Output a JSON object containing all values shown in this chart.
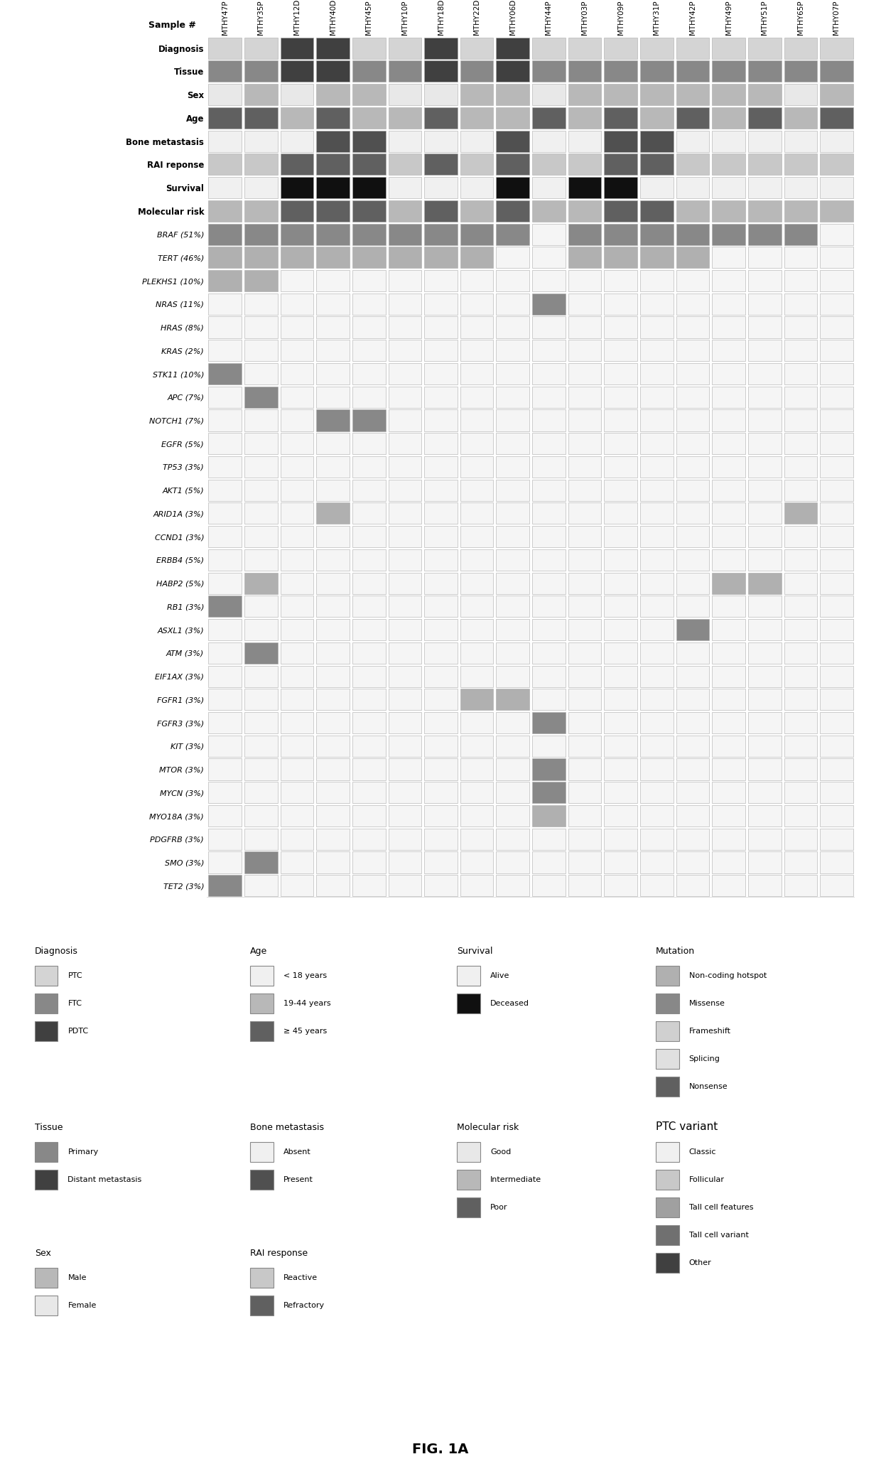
{
  "samples": [
    "MTHY47P",
    "MTHY35P",
    "MTHY12D",
    "MTHY40D",
    "MTHY45P",
    "MTHY10P",
    "MTHY18D",
    "MTHY22D",
    "MTHY06D",
    "MTHY44P",
    "MTHY03P",
    "MTHY09P",
    "MTHY31P",
    "MTHY42P",
    "MTHY49P",
    "MTHY51P",
    "MTHY65P",
    "MTHY07P"
  ],
  "clinical_rows": [
    "Diagnosis",
    "Tissue",
    "Sex",
    "Age",
    "Bone metastasis",
    "RAI reponse",
    "Survival",
    "Molecular risk"
  ],
  "gene_rows": [
    "BRAF (51%)",
    "TERT (46%)",
    "PLEKHS1 (10%)",
    "NRAS (11%)",
    "HRAS (8%)",
    "KRAS (2%)",
    "STK11 (10%)",
    "APC (7%)",
    "NOTCH1 (7%)",
    "EGFR (5%)",
    "TP53 (3%)",
    "AKT1 (5%)",
    "ARID1A (3%)",
    "CCND1 (3%)",
    "ERBB4 (5%)",
    "HABP2 (5%)",
    "RB1 (3%)",
    "ASXL1 (3%)",
    "ATM (3%)",
    "EIF1AX (3%)",
    "FGFR1 (3%)",
    "FGFR3 (3%)",
    "KIT (3%)",
    "MTOR (3%)",
    "MYCN (3%)",
    "MYO18A (3%)",
    "PDGFRB (3%)",
    "SMO (3%)",
    "TET2 (3%)"
  ],
  "n_samples": 18,
  "n_clinical": 8,
  "n_genes": 29,
  "clinical_data": {
    "Diagnosis": [
      "PTC",
      "PTC",
      "PDTC",
      "PDTC",
      "PTC",
      "PTC",
      "PDTC",
      "PTC",
      "PDTC",
      "PTC",
      "PTC",
      "PTC",
      "PTC",
      "PTC",
      "PTC",
      "PTC",
      "PTC",
      "PTC"
    ],
    "Tissue": [
      "Primary",
      "Primary",
      "Distant metastasis",
      "Distant metastasis",
      "Primary",
      "Primary",
      "Distant metastasis",
      "Primary",
      "Distant metastasis",
      "Primary",
      "Primary",
      "Primary",
      "Primary",
      "Primary",
      "Primary",
      "Primary",
      "Primary",
      "Primary"
    ],
    "Sex": [
      "Female",
      "Male",
      "Female",
      "Male",
      "Male",
      "Female",
      "Female",
      "Male",
      "Male",
      "Female",
      "Male",
      "Male",
      "Male",
      "Male",
      "Male",
      "Male",
      "Female",
      "Male"
    ],
    "Age": [
      ">=45",
      ">=45",
      "19-44",
      ">=45",
      "19-44",
      "19-44",
      ">=45",
      "19-44",
      "19-44",
      ">=45",
      "19-44",
      ">=45",
      "19-44",
      ">=45",
      "19-44",
      ">=45",
      "19-44",
      ">=45"
    ],
    "Bone metastasis": [
      "Absent",
      "Absent",
      "Absent",
      "Present",
      "Present",
      "Absent",
      "Absent",
      "Absent",
      "Present",
      "Absent",
      "Absent",
      "Present",
      "Present",
      "Absent",
      "Absent",
      "Absent",
      "Absent",
      "Absent"
    ],
    "RAI reponse": [
      "Reactive",
      "Reactive",
      "Refractory",
      "Refractory",
      "Refractory",
      "Reactive",
      "Refractory",
      "Reactive",
      "Refractory",
      "Reactive",
      "Reactive",
      "Refractory",
      "Refractory",
      "Reactive",
      "Reactive",
      "Reactive",
      "Reactive",
      "Reactive"
    ],
    "Survival": [
      "Alive",
      "Alive",
      "Deceased",
      "Deceased",
      "Deceased",
      "Alive",
      "Alive",
      "Alive",
      "Deceased",
      "Alive",
      "Deceased",
      "Deceased",
      "Alive",
      "Alive",
      "Alive",
      "Alive",
      "Alive",
      "Alive"
    ],
    "Molecular risk": [
      "Intermediate",
      "Intermediate",
      "Poor",
      "Poor",
      "Poor",
      "Intermediate",
      "Poor",
      "Intermediate",
      "Poor",
      "Intermediate",
      "Intermediate",
      "Poor",
      "Poor",
      "Intermediate",
      "Intermediate",
      "Intermediate",
      "Intermediate",
      "Intermediate"
    ]
  },
  "gene_data": {
    "BRAF (51%)": [
      1,
      1,
      1,
      1,
      1,
      1,
      1,
      1,
      1,
      0,
      1,
      1,
      1,
      1,
      1,
      1,
      1,
      0
    ],
    "TERT (46%)": [
      1,
      1,
      1,
      1,
      1,
      1,
      1,
      1,
      0,
      0,
      1,
      1,
      1,
      1,
      0,
      0,
      0,
      0
    ],
    "PLEKHS1 (10%)": [
      1,
      1,
      0,
      0,
      0,
      0,
      0,
      0,
      0,
      0,
      0,
      0,
      0,
      0,
      0,
      0,
      0,
      0
    ],
    "NRAS (11%)": [
      0,
      0,
      0,
      0,
      0,
      0,
      0,
      0,
      0,
      1,
      0,
      0,
      0,
      0,
      0,
      0,
      0,
      0
    ],
    "HRAS (8%)": [
      0,
      0,
      0,
      0,
      0,
      0,
      0,
      0,
      0,
      0,
      0,
      0,
      0,
      0,
      0,
      0,
      0,
      0
    ],
    "KRAS (2%)": [
      0,
      0,
      0,
      0,
      0,
      0,
      0,
      0,
      0,
      0,
      0,
      0,
      0,
      0,
      0,
      0,
      0,
      0
    ],
    "STK11 (10%)": [
      1,
      0,
      0,
      0,
      0,
      0,
      0,
      0,
      0,
      0,
      0,
      0,
      0,
      0,
      0,
      0,
      0,
      0
    ],
    "APC (7%)": [
      0,
      1,
      0,
      0,
      0,
      0,
      0,
      0,
      0,
      0,
      0,
      0,
      0,
      0,
      0,
      0,
      0,
      0
    ],
    "NOTCH1 (7%)": [
      0,
      0,
      0,
      1,
      1,
      0,
      0,
      0,
      0,
      0,
      0,
      0,
      0,
      0,
      0,
      0,
      0,
      0
    ],
    "EGFR (5%)": [
      0,
      0,
      0,
      0,
      0,
      0,
      0,
      0,
      0,
      0,
      0,
      0,
      0,
      0,
      0,
      0,
      0,
      0
    ],
    "TP53 (3%)": [
      0,
      0,
      0,
      0,
      0,
      0,
      0,
      0,
      0,
      0,
      0,
      0,
      0,
      0,
      0,
      0,
      0,
      0
    ],
    "AKT1 (5%)": [
      0,
      0,
      0,
      0,
      0,
      0,
      0,
      0,
      0,
      0,
      0,
      0,
      0,
      0,
      0,
      0,
      0,
      0
    ],
    "ARID1A (3%)": [
      0,
      0,
      0,
      1,
      0,
      0,
      0,
      0,
      0,
      0,
      0,
      0,
      0,
      0,
      0,
      0,
      1,
      0
    ],
    "CCND1 (3%)": [
      0,
      0,
      0,
      0,
      0,
      0,
      0,
      0,
      0,
      0,
      0,
      0,
      0,
      0,
      0,
      0,
      0,
      0
    ],
    "ERBB4 (5%)": [
      0,
      0,
      0,
      0,
      0,
      0,
      0,
      0,
      0,
      0,
      0,
      0,
      0,
      0,
      0,
      0,
      0,
      0
    ],
    "HABP2 (5%)": [
      0,
      1,
      0,
      0,
      0,
      0,
      0,
      0,
      0,
      0,
      0,
      0,
      0,
      0,
      1,
      1,
      0,
      0
    ],
    "RB1 (3%)": [
      1,
      0,
      0,
      0,
      0,
      0,
      0,
      0,
      0,
      0,
      0,
      0,
      0,
      0,
      0,
      0,
      0,
      0
    ],
    "ASXL1 (3%)": [
      0,
      0,
      0,
      0,
      0,
      0,
      0,
      0,
      0,
      0,
      0,
      0,
      0,
      1,
      0,
      0,
      0,
      0
    ],
    "ATM (3%)": [
      0,
      1,
      0,
      0,
      0,
      0,
      0,
      0,
      0,
      0,
      0,
      0,
      0,
      0,
      0,
      0,
      0,
      0
    ],
    "EIF1AX (3%)": [
      0,
      0,
      0,
      0,
      0,
      0,
      0,
      0,
      0,
      0,
      0,
      0,
      0,
      0,
      0,
      0,
      0,
      0
    ],
    "FGFR1 (3%)": [
      0,
      0,
      0,
      0,
      0,
      0,
      0,
      1,
      1,
      0,
      0,
      0,
      0,
      0,
      0,
      0,
      0,
      0
    ],
    "FGFR3 (3%)": [
      0,
      0,
      0,
      0,
      0,
      0,
      0,
      0,
      0,
      1,
      0,
      0,
      0,
      0,
      0,
      0,
      0,
      0
    ],
    "KIT (3%)": [
      0,
      0,
      0,
      0,
      0,
      0,
      0,
      0,
      0,
      0,
      0,
      0,
      0,
      0,
      0,
      0,
      0,
      0
    ],
    "MTOR (3%)": [
      0,
      0,
      0,
      0,
      0,
      0,
      0,
      0,
      0,
      1,
      0,
      0,
      0,
      0,
      0,
      0,
      0,
      0
    ],
    "MYCN (3%)": [
      0,
      0,
      0,
      0,
      0,
      0,
      0,
      0,
      0,
      1,
      0,
      0,
      0,
      0,
      0,
      0,
      0,
      0
    ],
    "MYO18A (3%)": [
      0,
      0,
      0,
      0,
      0,
      0,
      0,
      0,
      0,
      1,
      0,
      0,
      0,
      0,
      0,
      0,
      0,
      0
    ],
    "PDGFRB (3%)": [
      0,
      0,
      0,
      0,
      0,
      0,
      0,
      0,
      0,
      0,
      0,
      0,
      0,
      0,
      0,
      0,
      0,
      0
    ],
    "SMO (3%)": [
      0,
      1,
      0,
      0,
      0,
      0,
      0,
      0,
      0,
      0,
      0,
      0,
      0,
      0,
      0,
      0,
      0,
      0
    ],
    "TET2 (3%)": [
      1,
      0,
      0,
      0,
      0,
      0,
      0,
      0,
      0,
      0,
      0,
      0,
      0,
      0,
      0,
      0,
      0,
      0
    ]
  },
  "gene_colors": {
    "BRAF (51%)": "#888888",
    "TERT (46%)": "#b0b0b0",
    "PLEKHS1 (10%)": "#b0b0b0",
    "NRAS (11%)": "#888888",
    "HRAS (8%)": "#888888",
    "KRAS (2%)": "#888888",
    "STK11 (10%)": "#888888",
    "APC (7%)": "#888888",
    "NOTCH1 (7%)": "#888888",
    "EGFR (5%)": "#888888",
    "TP53 (3%)": "#888888",
    "AKT1 (5%)": "#888888",
    "ARID1A (3%)": "#b0b0b0",
    "CCND1 (3%)": "#888888",
    "ERBB4 (5%)": "#888888",
    "HABP2 (5%)": "#b0b0b0",
    "RB1 (3%)": "#888888",
    "ASXL1 (3%)": "#888888",
    "ATM (3%)": "#888888",
    "EIF1AX (3%)": "#888888",
    "FGFR1 (3%)": "#b0b0b0",
    "FGFR3 (3%)": "#888888",
    "KIT (3%)": "#888888",
    "MTOR (3%)": "#888888",
    "MYCN (3%)": "#888888",
    "MYO18A (3%)": "#b0b0b0",
    "PDGFRB (3%)": "#888888",
    "SMO (3%)": "#888888",
    "TET2 (3%)": "#888888"
  },
  "diag_map": {
    "PTC": "#d4d4d4",
    "FTC": "#888888",
    "PDTC": "#404040"
  },
  "tissue_map": {
    "Primary": "#888888",
    "Distant metastasis": "#404040"
  },
  "sex_map": {
    "Male": "#b8b8b8",
    "Female": "#e8e8e8"
  },
  "age_map": {
    "<18": "#f0f0f0",
    "19-44": "#b8b8b8",
    ">=45": "#606060"
  },
  "bone_map": {
    "Absent": "#f0f0f0",
    "Present": "#505050"
  },
  "rai_map": {
    "Reactive": "#c8c8c8",
    "Refractory": "#606060"
  },
  "survival_map": {
    "Alive": "#f0f0f0",
    "Deceased": "#101010"
  },
  "molrisk_map": {
    "Good": "#e8e8e8",
    "Intermediate": "#b8b8b8",
    "Poor": "#606060"
  },
  "empty_color": "#f5f5f5",
  "background": "#ffffff",
  "title": "FIG. 1A",
  "legend_diagnosis": [
    [
      "PTC",
      "#d4d4d4"
    ],
    [
      "FTC",
      "#888888"
    ],
    [
      "PDTC",
      "#404040"
    ]
  ],
  "legend_tissue": [
    [
      "Primary",
      "#888888"
    ],
    [
      "Distant metastasis",
      "#404040"
    ]
  ],
  "legend_sex": [
    [
      "Male",
      "#b8b8b8"
    ],
    [
      "Female",
      "#e8e8e8"
    ]
  ],
  "legend_age": [
    [
      "< 18 years",
      "#f0f0f0"
    ],
    [
      "19-44 years",
      "#b8b8b8"
    ],
    [
      "≥ 45 years",
      "#606060"
    ]
  ],
  "legend_bone": [
    [
      "Absent",
      "#f0f0f0"
    ],
    [
      "Present",
      "#505050"
    ]
  ],
  "legend_rai": [
    [
      "Reactive",
      "#c8c8c8"
    ],
    [
      "Refractory",
      "#606060"
    ]
  ],
  "legend_survival": [
    [
      "Alive",
      "#f0f0f0"
    ],
    [
      "Deceased",
      "#101010"
    ]
  ],
  "legend_molrisk": [
    [
      "Good",
      "#e8e8e8"
    ],
    [
      "Intermediate",
      "#b8b8b8"
    ],
    [
      "Poor",
      "#606060"
    ]
  ],
  "legend_mutation": [
    [
      "Non-coding hotspot",
      "#b0b0b0"
    ],
    [
      "Missense",
      "#888888"
    ],
    [
      "Frameshift",
      "#d0d0d0"
    ],
    [
      "Splicing",
      "#e0e0e0"
    ],
    [
      "Nonsense",
      "#606060"
    ]
  ],
  "legend_ptcvariant": [
    [
      "Classic",
      "#f0f0f0"
    ],
    [
      "Follicular",
      "#c8c8c8"
    ],
    [
      "Tall cell features",
      "#a0a0a0"
    ],
    [
      "Tall cell variant",
      "#707070"
    ],
    [
      "Other",
      "#404040"
    ]
  ]
}
